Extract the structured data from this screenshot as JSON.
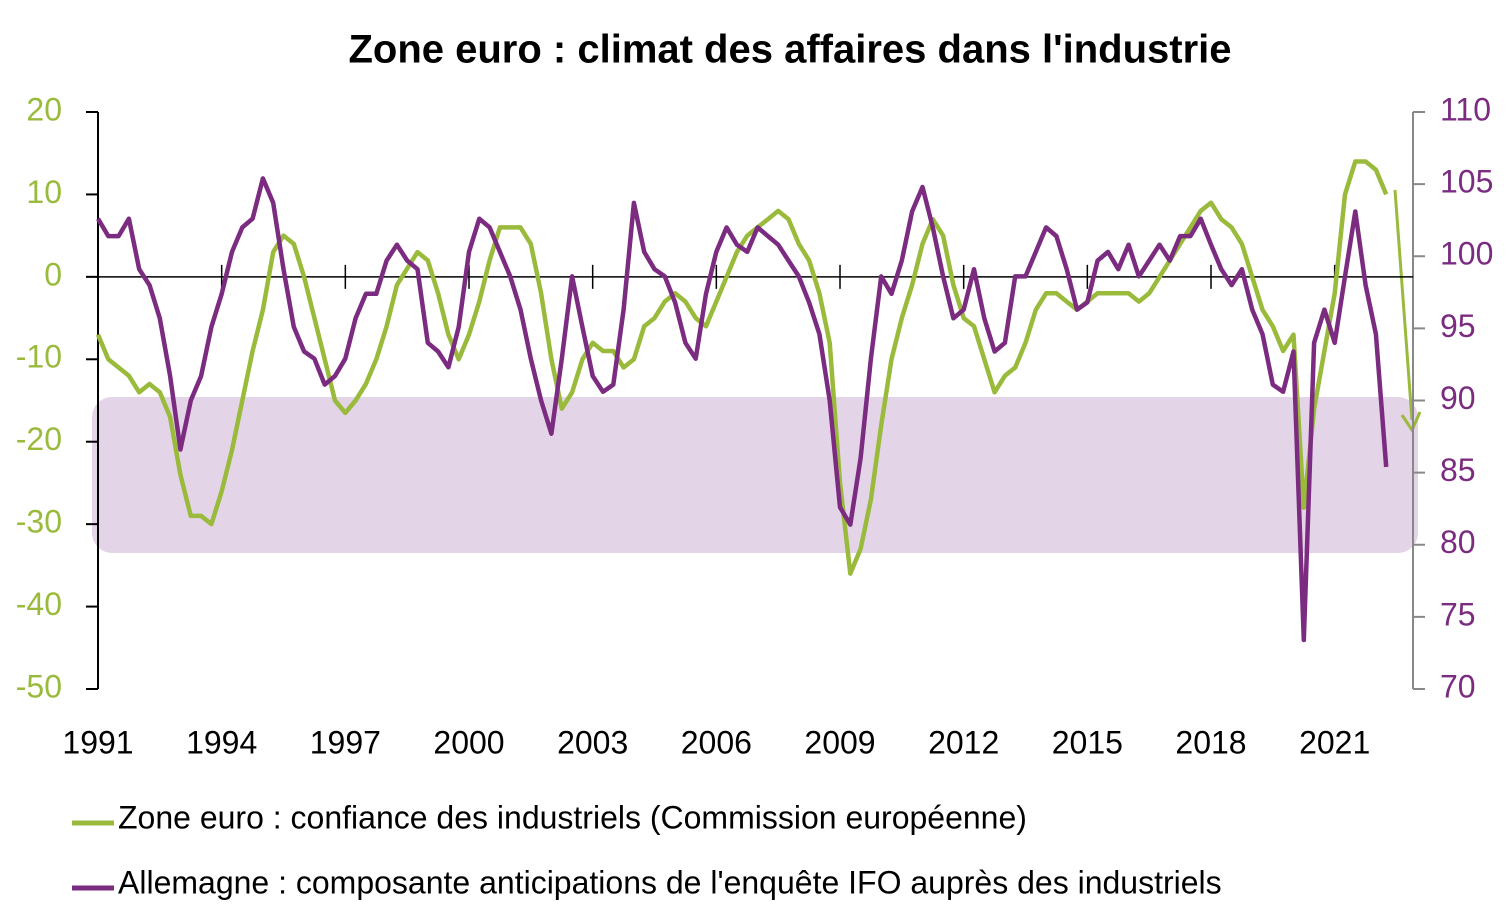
{
  "chart_data": {
    "type": "line",
    "title": "Zone euro : climat des affaires dans l'industrie",
    "x": [
      1991,
      1991.25,
      1991.5,
      1991.75,
      1992,
      1992.25,
      1992.5,
      1992.75,
      1993,
      1993.25,
      1993.5,
      1993.75,
      1994,
      1994.25,
      1994.5,
      1994.75,
      1995,
      1995.25,
      1995.5,
      1995.75,
      1996,
      1996.25,
      1996.5,
      1996.75,
      1997,
      1997.25,
      1997.5,
      1997.75,
      1998,
      1998.25,
      1998.5,
      1998.75,
      1999,
      1999.25,
      1999.5,
      1999.75,
      2000,
      2000.25,
      2000.5,
      2000.75,
      2001,
      2001.25,
      2001.5,
      2001.75,
      2002,
      2002.25,
      2002.5,
      2002.75,
      2003,
      2003.25,
      2003.5,
      2003.75,
      2004,
      2004.25,
      2004.5,
      2004.75,
      2005,
      2005.25,
      2005.5,
      2005.75,
      2006,
      2006.25,
      2006.5,
      2006.75,
      2007,
      2007.25,
      2007.5,
      2007.75,
      2008,
      2008.25,
      2008.5,
      2008.75,
      2009,
      2009.25,
      2009.5,
      2009.75,
      2010,
      2010.25,
      2010.5,
      2010.75,
      2011,
      2011.25,
      2011.5,
      2011.75,
      2012,
      2012.25,
      2012.5,
      2012.75,
      2013,
      2013.25,
      2013.5,
      2013.75,
      2014,
      2014.25,
      2014.5,
      2014.75,
      2015,
      2015.25,
      2015.5,
      2015.75,
      2016,
      2016.25,
      2016.5,
      2016.75,
      2017,
      2017.25,
      2017.5,
      2017.75,
      2018,
      2018.25,
      2018.5,
      2018.75,
      2019,
      2019.25,
      2019.5,
      2019.75,
      2020,
      2020.25,
      2020.5,
      2020.75,
      2021,
      2021.25,
      2021.5,
      2021.75,
      2022,
      2022.25
    ],
    "series": [
      {
        "name": "Zone euro : confiance des industriels (Commission européenne)",
        "color": "#9aba3c",
        "values": [
          -7,
          -10,
          -11,
          -12,
          -14,
          -13,
          -14,
          -17,
          -24,
          -29,
          -29,
          -30,
          -26,
          -21,
          -15,
          -9,
          -4,
          3,
          5,
          4,
          0,
          -5,
          -10,
          -15,
          -16.5,
          -15,
          -13,
          -10,
          -6,
          -1,
          1,
          3,
          2,
          -2,
          -7,
          -10,
          -7,
          -3,
          2,
          6,
          6,
          6,
          4,
          -2,
          -10,
          -16,
          -14,
          -10,
          -8,
          -9,
          -9,
          -11,
          -10,
          -6,
          -5,
          -3,
          -2,
          -3,
          -5,
          -6,
          -3,
          0,
          3,
          5,
          6,
          7,
          8,
          7,
          4,
          2,
          -2,
          -8,
          -25,
          -36,
          -33,
          -27,
          -18,
          -10,
          -5,
          -1,
          4,
          7,
          5,
          -1,
          -5,
          -6,
          -10,
          -14,
          -12,
          -11,
          -8,
          -4,
          -2,
          -2,
          -3,
          -4,
          -3,
          -2,
          -2,
          -2,
          -2,
          -3,
          -2,
          0,
          2,
          4,
          6,
          8,
          9,
          7,
          6,
          4,
          0,
          -4,
          -6,
          -9,
          -7,
          -28,
          -16,
          -9,
          -2,
          10,
          14,
          14,
          13,
          10
        ]
      },
      {
        "name": "Allemagne : composante anticipations de l'enquête IFO auprès des industriels",
        "color": "#7b2c80",
        "axis": "y2",
        "values": [
          102.6,
          101.4,
          101.4,
          102.6,
          99.1,
          98.0,
          95.7,
          91.7,
          86.6,
          90,
          91.7,
          95.1,
          97.4,
          100.3,
          102,
          102.6,
          105.4,
          103.7,
          99.1,
          95.1,
          93.4,
          92.9,
          91.1,
          91.7,
          92.9,
          95.7,
          97.4,
          97.4,
          99.7,
          100.8,
          99.7,
          99.1,
          94,
          93.4,
          92.3,
          95.1,
          100.3,
          102.6,
          102,
          100.3,
          98.6,
          96.3,
          92.9,
          90,
          87.7,
          92.9,
          98.6,
          95.1,
          91.7,
          90.6,
          91.1,
          96.3,
          103.7,
          100.3,
          99.1,
          98.6,
          96.8,
          94,
          92.9,
          97.4,
          100.3,
          102,
          100.8,
          100.3,
          102,
          101.4,
          100.8,
          99.7,
          98.6,
          96.8,
          94.6,
          90,
          82.6,
          81.4,
          86,
          92.9,
          98.6,
          97.4,
          99.7,
          103.1,
          104.8,
          102,
          98.6,
          95.7,
          96.3,
          99.1,
          95.7,
          93.4,
          94,
          98.6,
          98.6,
          100.3,
          102,
          101.4,
          99.1,
          96.3,
          96.8,
          99.7,
          100.3,
          99.1,
          100.8,
          98.6,
          99.7,
          100.8,
          99.7,
          101.4,
          101.4,
          102.6,
          100.8,
          99.1,
          98.0,
          99.1,
          96.3,
          94.6,
          91.1,
          90.6,
          93.4,
          73.4,
          94,
          96.3,
          94,
          98.6,
          103.1,
          98.0,
          94.6,
          85.4
        ]
      }
    ],
    "xlim": [
      1991,
      2022.9
    ],
    "xticks": [
      1991,
      1994,
      1997,
      2000,
      2003,
      2006,
      2009,
      2012,
      2015,
      2018,
      2021
    ],
    "ylim": [
      -50,
      20
    ],
    "yticks": [
      20,
      10,
      0,
      -10,
      -20,
      -30,
      -40,
      -50
    ],
    "y2lim": [
      70,
      110
    ],
    "y2ticks": [
      110,
      105,
      100,
      95,
      90,
      85,
      80,
      75,
      70
    ]
  }
}
